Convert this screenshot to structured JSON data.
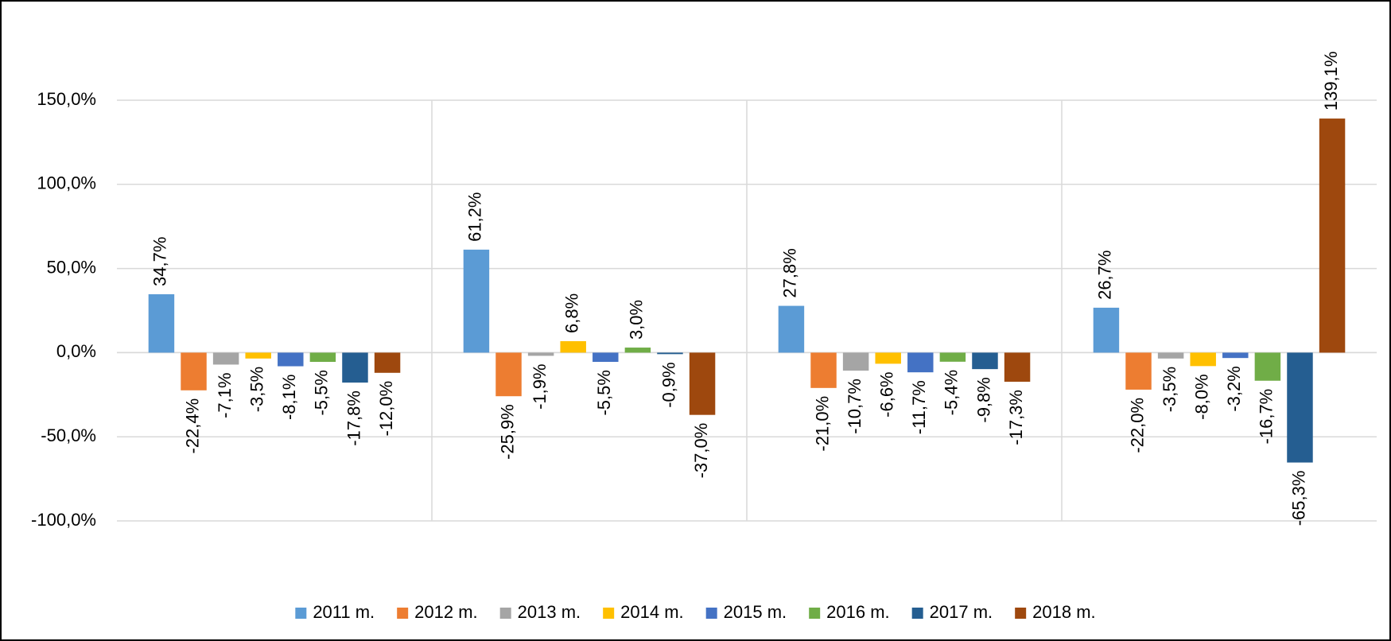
{
  "chart_data": {
    "type": "bar",
    "categories": [
      null,
      null,
      null,
      null
    ],
    "ylim": [
      -100,
      150
    ],
    "yticks": [
      {
        "value": -100,
        "label": "-100,0%"
      },
      {
        "value": -50,
        "label": "-50,0%"
      },
      {
        "value": 0,
        "label": "0,0%"
      },
      {
        "value": 50,
        "label": "50,0%"
      },
      {
        "value": 100,
        "label": "100,0%"
      },
      {
        "value": 150,
        "label": "150,0%"
      }
    ],
    "grid": true,
    "legend": "bottom",
    "series": [
      {
        "name": "2011 m.",
        "color": "#5b9bd5",
        "values": [
          34.7,
          61.2,
          27.8,
          26.7
        ],
        "value_labels": [
          "34,7%",
          "61,2%",
          "27,8%",
          "26,7%"
        ]
      },
      {
        "name": "2012 m.",
        "color": "#ed7d31",
        "values": [
          -22.4,
          -25.9,
          -21.0,
          -22.0
        ],
        "value_labels": [
          "-22,4%",
          "-25,9%",
          "-21,0%",
          "-22,0%"
        ]
      },
      {
        "name": "2013 m.",
        "color": "#a5a5a5",
        "values": [
          -7.1,
          -1.9,
          -10.7,
          -3.5
        ],
        "value_labels": [
          "-7,1%",
          "-1,9%",
          "-10,7%",
          "-3,5%"
        ]
      },
      {
        "name": "2014 m.",
        "color": "#ffc000",
        "values": [
          -3.5,
          6.8,
          -6.6,
          -8.0
        ],
        "value_labels": [
          "-3,5%",
          "6,8%",
          "-6,6%",
          "-8,0%"
        ]
      },
      {
        "name": "2015 m.",
        "color": "#4472c4",
        "values": [
          -8.1,
          -5.5,
          -11.7,
          -3.2
        ],
        "value_labels": [
          "-8,1%",
          "-5,5%",
          "-11,7%",
          "-3,2%"
        ]
      },
      {
        "name": "2016 m.",
        "color": "#70ad47",
        "values": [
          -5.5,
          3.0,
          -5.4,
          -16.7
        ],
        "value_labels": [
          "-5,5%",
          "3,0%",
          "-5,4%",
          "-16,7%"
        ]
      },
      {
        "name": "2017 m.",
        "color": "#255e91",
        "values": [
          -17.8,
          -0.9,
          -9.8,
          -65.3
        ],
        "value_labels": [
          "-17,8%",
          "-0,9%",
          "-9,8%",
          "-65,3%"
        ]
      },
      {
        "name": "2018 m.",
        "color": "#9e480e",
        "values": [
          -12.0,
          -37.0,
          -17.3,
          139.1
        ],
        "value_labels": [
          "-12,0%",
          "-37,0%",
          "-17,3%",
          "139,1%"
        ]
      }
    ]
  }
}
